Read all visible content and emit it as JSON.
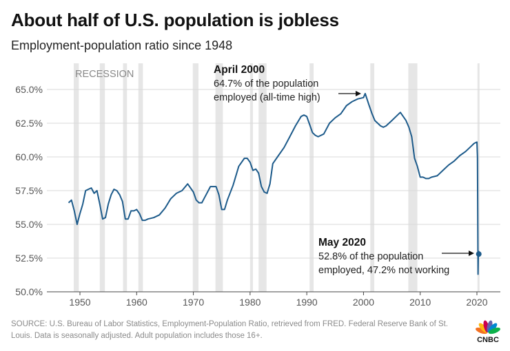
{
  "header": {
    "title": "About half of U.S. population is jobless",
    "subtitle": "Employment-population ratio since 1948"
  },
  "footer": {
    "source": "SOURCE: U.S. Bureau of Labor Statistics, Employment-Population Ratio, retrieved from FRED. Federal Reserve Bank of St. Louis. Data is seasonally adjusted. Adult population includes those 16+."
  },
  "logo": {
    "text": "CNBC",
    "peacock_colors": [
      "#f37021",
      "#fcb711",
      "#cc004c",
      "#6460aa",
      "#0089d0",
      "#0db14b"
    ]
  },
  "colors": {
    "line": "#1c5a8a",
    "recession": "#e6e6e6",
    "grid": "#d9d9d9",
    "tick_text": "#555555",
    "recession_label": "#888888"
  },
  "chart_data": {
    "type": "line",
    "title": "About half of U.S. population is jobless",
    "subtitle": "Employment-population ratio since 1948",
    "xlabel": "",
    "ylabel": "",
    "xlim": [
      1946,
      2022
    ],
    "ylim": [
      49.5,
      66
    ],
    "y_ticks": [
      50.0,
      52.5,
      55.0,
      57.5,
      60.0,
      62.5,
      65.0
    ],
    "y_tick_labels": [
      "50.0%",
      "52.5%",
      "55.0%",
      "57.5%",
      "60.0%",
      "62.5%",
      "65.0%"
    ],
    "x_ticks": [
      1950,
      1960,
      1970,
      1980,
      1990,
      2000,
      2010,
      2020
    ],
    "x_tick_labels": [
      "1950",
      "1960",
      "1970",
      "1980",
      "1990",
      "2000",
      "2010",
      "2020"
    ],
    "grid": "horizontal",
    "recession_label": "RECESSION",
    "recessions": [
      [
        1948.9,
        1949.8
      ],
      [
        1953.5,
        1954.4
      ],
      [
        1957.6,
        1958.3
      ],
      [
        1960.3,
        1961.1
      ],
      [
        1969.9,
        1970.9
      ],
      [
        1973.9,
        1975.2
      ],
      [
        1980.0,
        1980.5
      ],
      [
        1981.5,
        1982.9
      ],
      [
        1990.5,
        1991.2
      ],
      [
        2001.2,
        2001.9
      ],
      [
        2007.9,
        2009.5
      ],
      [
        2020.1,
        2020.4
      ]
    ],
    "series": [
      {
        "x": [
          1948.0,
          1948.5,
          1949.0,
          1949.5,
          1950.0,
          1950.5,
          1951.0,
          1951.5,
          1952.0,
          1952.5,
          1953.0,
          1953.5,
          1954.0,
          1954.5,
          1955.0,
          1955.5,
          1956.0,
          1956.5,
          1957.0,
          1957.5,
          1958.0,
          1958.5,
          1959.0,
          1959.5,
          1960.0,
          1960.5,
          1961.0,
          1961.5,
          1962.0,
          1963.0,
          1964.0,
          1965.0,
          1966.0,
          1967.0,
          1968.0,
          1969.0,
          1970.0,
          1970.5,
          1971.0,
          1971.5,
          1972.0,
          1973.0,
          1974.0,
          1974.5,
          1975.0,
          1975.5,
          1976.0,
          1977.0,
          1978.0,
          1979.0,
          1979.5,
          1980.0,
          1980.5,
          1981.0,
          1981.5,
          1982.0,
          1982.5,
          1983.0,
          1983.5,
          1984.0,
          1985.0,
          1986.0,
          1987.0,
          1988.0,
          1989.0,
          1989.5,
          1990.0,
          1990.5,
          1991.0,
          1991.5,
          1992.0,
          1993.0,
          1994.0,
          1995.0,
          1996.0,
          1997.0,
          1998.0,
          1999.0,
          2000.0,
          2000.3,
          2001.0,
          2001.5,
          2002.0,
          2002.5,
          2003.0,
          2003.5,
          2004.0,
          2005.0,
          2006.0,
          2006.5,
          2007.0,
          2007.5,
          2008.0,
          2008.5,
          2009.0,
          2009.5,
          2010.0,
          2010.5,
          2011.0,
          2011.5,
          2012.0,
          2013.0,
          2014.0,
          2015.0,
          2016.0,
          2017.0,
          2018.0,
          2019.0,
          2019.5,
          2020.0,
          2020.1,
          2020.2,
          2020.25,
          2020.3,
          2020.33
        ],
        "values": [
          56.6,
          56.8,
          56.0,
          55.0,
          55.8,
          56.5,
          57.5,
          57.6,
          57.7,
          57.3,
          57.5,
          56.5,
          55.4,
          55.5,
          56.5,
          57.2,
          57.6,
          57.5,
          57.2,
          56.7,
          55.4,
          55.4,
          56.0,
          56.0,
          56.1,
          55.8,
          55.3,
          55.3,
          55.4,
          55.5,
          55.7,
          56.2,
          56.9,
          57.3,
          57.5,
          58.0,
          57.4,
          56.8,
          56.6,
          56.6,
          57.0,
          57.8,
          57.8,
          57.2,
          56.1,
          56.1,
          56.8,
          57.9,
          59.3,
          59.9,
          59.9,
          59.6,
          59.0,
          59.1,
          58.8,
          57.8,
          57.4,
          57.3,
          58.0,
          59.5,
          60.1,
          60.7,
          61.5,
          62.3,
          63.0,
          63.1,
          63.0,
          62.4,
          61.8,
          61.6,
          61.5,
          61.7,
          62.5,
          62.9,
          63.2,
          63.8,
          64.1,
          64.3,
          64.4,
          64.7,
          63.8,
          63.2,
          62.7,
          62.5,
          62.3,
          62.2,
          62.3,
          62.7,
          63.1,
          63.3,
          63.0,
          62.7,
          62.2,
          61.5,
          59.9,
          59.3,
          58.5,
          58.5,
          58.4,
          58.4,
          58.5,
          58.6,
          59.0,
          59.4,
          59.7,
          60.1,
          60.4,
          60.8,
          61.0,
          61.1,
          60.0,
          51.3,
          52.8,
          53.0,
          52.8
        ]
      }
    ],
    "annotations": [
      {
        "heading": "April 2000",
        "lines": [
          "64.7% of the population",
          "employed (all-time high)"
        ],
        "x": 2000.3,
        "y": 64.7
      },
      {
        "heading": "May 2020",
        "lines": [
          "52.8% of the population",
          "employed, 47.2% not working"
        ],
        "x": 2020.33,
        "y": 52.8
      }
    ]
  }
}
